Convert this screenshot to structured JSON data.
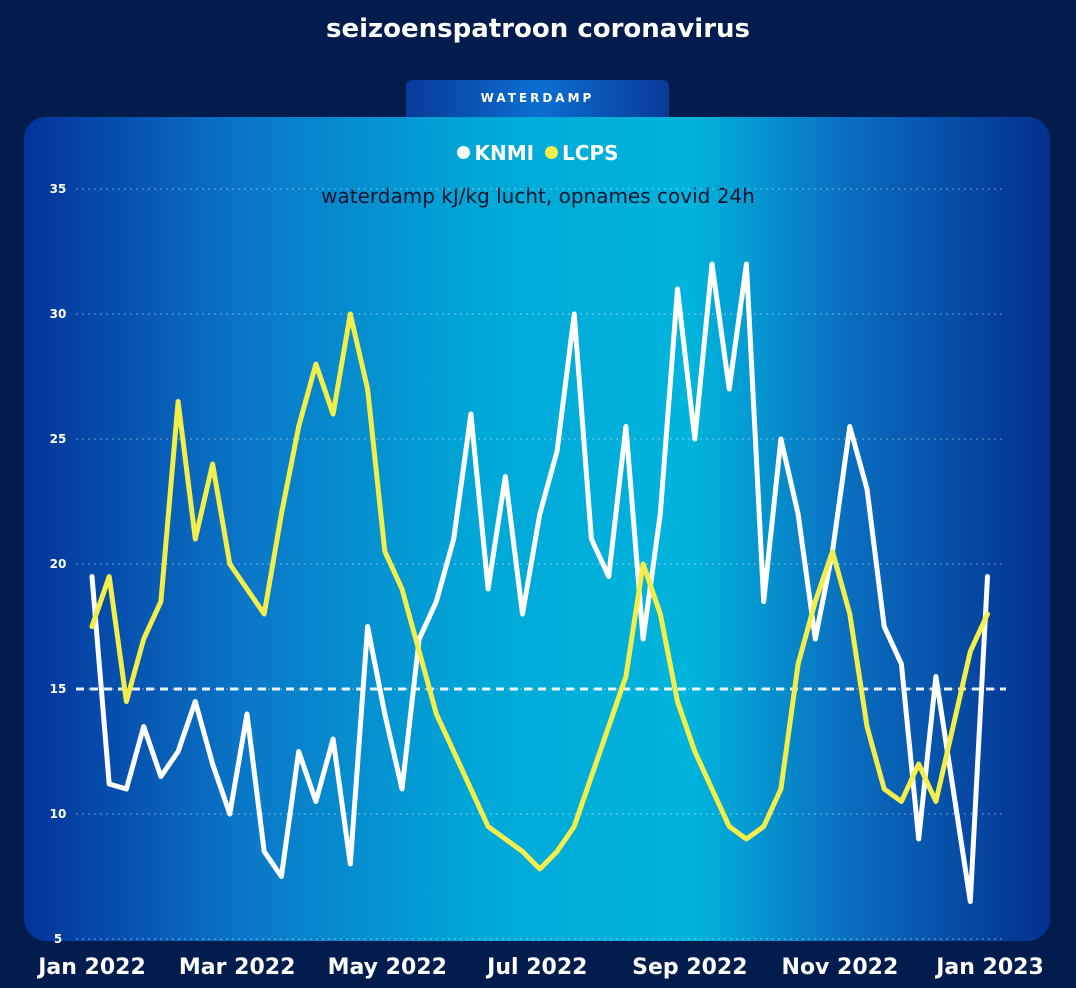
{
  "title": "seizoenspatroon coronavirus",
  "tab_label": "WATERDAMP",
  "chart_data": {
    "type": "line",
    "title": "",
    "subtitle": "waterdamp kJ/kg lucht, opnames covid 24h",
    "ylim": [
      5,
      35
    ],
    "y_ticks": [
      "5",
      "10",
      "15",
      "20",
      "25",
      "30",
      "35"
    ],
    "x_ticks": [
      "Jan 2022",
      "Mar 2022",
      "May 2022",
      "Jul 2022",
      "Sep 2022",
      "Nov 2022",
      "Jan 2023"
    ],
    "x_start": "2022-01-01",
    "x_end": "2023-01-01",
    "reference_line": 15,
    "grid": true,
    "legend_position": "top-center",
    "series": [
      {
        "name": "KNMI",
        "color": "#ffffff",
        "x": [
          "2022-01-01",
          "2022-01-08",
          "2022-01-15",
          "2022-01-22",
          "2022-01-29",
          "2022-02-05",
          "2022-02-12",
          "2022-02-19",
          "2022-02-26",
          "2022-03-05",
          "2022-03-12",
          "2022-03-19",
          "2022-03-26",
          "2022-04-02",
          "2022-04-09",
          "2022-04-16",
          "2022-04-23",
          "2022-04-30",
          "2022-05-07",
          "2022-05-14",
          "2022-05-21",
          "2022-05-28",
          "2022-06-04",
          "2022-06-11",
          "2022-06-18",
          "2022-06-25",
          "2022-07-02",
          "2022-07-09",
          "2022-07-16",
          "2022-07-23",
          "2022-07-30",
          "2022-08-06",
          "2022-08-13",
          "2022-08-20",
          "2022-08-27",
          "2022-09-03",
          "2022-09-10",
          "2022-09-17",
          "2022-09-24",
          "2022-10-01",
          "2022-10-08",
          "2022-10-15",
          "2022-10-22",
          "2022-10-29",
          "2022-11-05",
          "2022-11-12",
          "2022-11-19",
          "2022-11-26",
          "2022-12-03",
          "2022-12-10",
          "2022-12-17",
          "2022-12-24",
          "2022-12-31"
        ],
        "values": [
          19.5,
          11.2,
          11.0,
          13.5,
          11.5,
          12.5,
          14.5,
          12.0,
          10.0,
          14.0,
          8.5,
          7.5,
          12.5,
          10.5,
          13.0,
          8.0,
          17.5,
          14.0,
          11.0,
          17.0,
          18.5,
          21.0,
          26.0,
          19.0,
          23.5,
          18.0,
          22.0,
          24.5,
          30.0,
          21.0,
          19.5,
          25.5,
          17.0,
          22.0,
          31.0,
          25.0,
          32.0,
          27.0,
          32.0,
          18.5,
          25.0,
          22.0,
          17.0,
          20.5,
          25.5,
          23.0,
          17.5,
          16.0,
          9.0,
          15.5,
          11.0,
          6.5,
          19.5
        ]
      },
      {
        "name": "LCPS",
        "color": "#f4ee4a",
        "x": [
          "2022-01-01",
          "2022-01-08",
          "2022-01-15",
          "2022-01-22",
          "2022-01-29",
          "2022-02-05",
          "2022-02-12",
          "2022-02-19",
          "2022-02-26",
          "2022-03-05",
          "2022-03-12",
          "2022-03-19",
          "2022-03-26",
          "2022-04-02",
          "2022-04-09",
          "2022-04-16",
          "2022-04-23",
          "2022-04-30",
          "2022-05-07",
          "2022-05-14",
          "2022-05-21",
          "2022-05-28",
          "2022-06-04",
          "2022-06-11",
          "2022-06-18",
          "2022-06-25",
          "2022-07-02",
          "2022-07-09",
          "2022-07-16",
          "2022-07-23",
          "2022-07-30",
          "2022-08-06",
          "2022-08-13",
          "2022-08-20",
          "2022-08-27",
          "2022-09-03",
          "2022-09-10",
          "2022-09-17",
          "2022-09-24",
          "2022-10-01",
          "2022-10-08",
          "2022-10-15",
          "2022-10-22",
          "2022-10-29",
          "2022-11-05",
          "2022-11-12",
          "2022-11-19",
          "2022-11-26",
          "2022-12-03",
          "2022-12-10",
          "2022-12-17",
          "2022-12-24",
          "2022-12-31"
        ],
        "values": [
          17.5,
          19.5,
          14.5,
          17.0,
          18.5,
          26.5,
          21.0,
          24.0,
          20.0,
          19.0,
          18.0,
          22.0,
          25.5,
          28.0,
          26.0,
          30.0,
          27.0,
          20.5,
          19.0,
          16.5,
          14.0,
          12.5,
          11.0,
          9.5,
          9.0,
          8.5,
          7.8,
          8.5,
          9.5,
          11.5,
          13.5,
          15.5,
          20.0,
          18.0,
          14.5,
          12.5,
          11.0,
          9.5,
          9.0,
          9.5,
          11.0,
          16.0,
          18.5,
          20.5,
          18.0,
          13.5,
          11.0,
          10.5,
          12.0,
          10.5,
          13.5,
          16.5,
          18.0
        ]
      }
    ]
  }
}
